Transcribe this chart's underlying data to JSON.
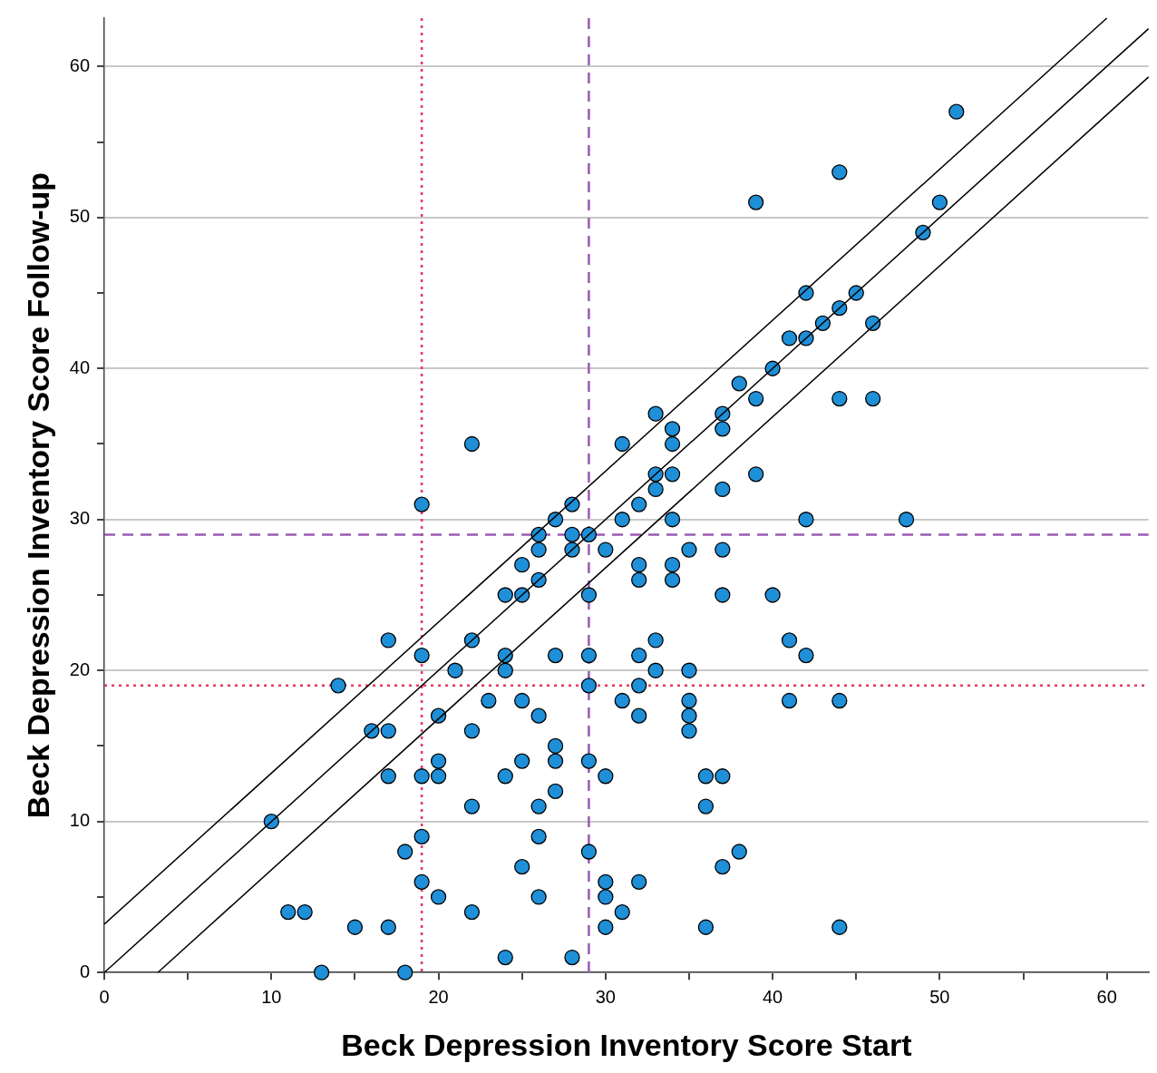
{
  "chart_data": {
    "type": "scatter",
    "xlabel": "Beck Depression Inventory Score Start",
    "ylabel": "Beck Depression Inventory Score Follow-up",
    "xlim": [
      0,
      62.5
    ],
    "ylim": [
      0,
      63.2
    ],
    "xticks": [
      0,
      {
        "value": 5,
        "label": null
      },
      10,
      {
        "value": 15,
        "label": null
      },
      20,
      {
        "value": 25,
        "label": null
      },
      30,
      {
        "value": 35,
        "label": null
      },
      40,
      {
        "value": 45,
        "label": null
      },
      50,
      {
        "value": 55,
        "label": null
      },
      60
    ],
    "yticks": [
      0,
      {
        "value": 5,
        "label": null
      },
      10,
      {
        "value": 15,
        "label": null
      },
      20,
      {
        "value": 25,
        "label": null
      },
      30,
      {
        "value": 35,
        "label": null
      },
      40,
      {
        "value": 45,
        "label": null
      },
      50,
      {
        "value": 55,
        "label": null
      },
      60
    ],
    "grid": "y",
    "legend": false,
    "marker": "circle",
    "series": [
      {
        "type": "line",
        "color": "#000000",
        "marker": "none",
        "line_style": "solid",
        "x": [
          0,
          60
        ],
        "values": [
          3.2,
          63.2
        ]
      },
      {
        "type": "line",
        "color": "#000000",
        "marker": "none",
        "line_style": "solid",
        "x": [
          0,
          62.5
        ],
        "values": [
          0,
          62.5
        ]
      },
      {
        "type": "line",
        "color": "#000000",
        "marker": "none",
        "line_style": "solid",
        "x": [
          3.2,
          62.5
        ],
        "values": [
          0,
          59.3
        ]
      },
      {
        "type": "scatter",
        "color": "#1f8fd8",
        "x": [
          10,
          11,
          12,
          13,
          14,
          15,
          16,
          17,
          17,
          17,
          17,
          18,
          18,
          19,
          19,
          19,
          19,
          19,
          20,
          20,
          20,
          20,
          21,
          22,
          22,
          22,
          22,
          22,
          23,
          24,
          24,
          24,
          24,
          24,
          25,
          25,
          25,
          25,
          25,
          26,
          26,
          26,
          26,
          26,
          26,
          26,
          27,
          27,
          27,
          27,
          27,
          28,
          28,
          28,
          28,
          29,
          29,
          29,
          29,
          29,
          29,
          30,
          30,
          30,
          30,
          30,
          31,
          31,
          31,
          31,
          32,
          32,
          32,
          32,
          32,
          32,
          32,
          33,
          33,
          33,
          33,
          33,
          34,
          34,
          34,
          34,
          34,
          34,
          35,
          35,
          35,
          35,
          35,
          36,
          36,
          36,
          37,
          37,
          37,
          37,
          37,
          37,
          37,
          38,
          38,
          39,
          39,
          39,
          40,
          40,
          41,
          41,
          41,
          42,
          42,
          42,
          42,
          43,
          44,
          44,
          44,
          44,
          44,
          45,
          46,
          46,
          48,
          49,
          50,
          51
        ],
        "values": [
          10,
          4,
          4,
          0,
          19,
          3,
          16,
          16,
          22,
          13,
          3,
          8,
          0,
          31,
          21,
          13,
          9,
          6,
          17,
          14,
          13,
          5,
          20,
          35,
          22,
          16,
          11,
          4,
          18,
          25,
          21,
          20,
          13,
          1,
          27,
          25,
          18,
          14,
          7,
          29,
          28,
          26,
          17,
          11,
          9,
          5,
          30,
          21,
          15,
          14,
          12,
          31,
          29,
          28,
          1,
          29,
          25,
          21,
          19,
          14,
          8,
          28,
          13,
          6,
          5,
          3,
          35,
          30,
          18,
          4,
          31,
          27,
          26,
          21,
          19,
          17,
          6,
          37,
          33,
          32,
          22,
          20,
          36,
          35,
          33,
          30,
          27,
          26,
          28,
          20,
          18,
          17,
          16,
          13,
          11,
          3,
          37,
          36,
          32,
          28,
          25,
          13,
          7,
          39,
          8,
          51,
          38,
          33,
          40,
          25,
          42,
          22,
          18,
          45,
          42,
          30,
          21,
          43,
          53,
          44,
          38,
          18,
          3,
          45,
          43,
          38,
          30,
          49,
          51,
          57
        ]
      }
    ],
    "ref_lines": [
      {
        "axis": "x",
        "value": 19,
        "color": "#e8365f",
        "line_style": "dotted"
      },
      {
        "axis": "x",
        "value": 29,
        "color": "#9b59b6",
        "line_style": "dashed"
      },
      {
        "axis": "y",
        "value": 19,
        "color": "#e8365f",
        "line_style": "dotted"
      },
      {
        "axis": "y",
        "value": 29,
        "color": "#9b59b6",
        "line_style": "dashed"
      }
    ]
  }
}
